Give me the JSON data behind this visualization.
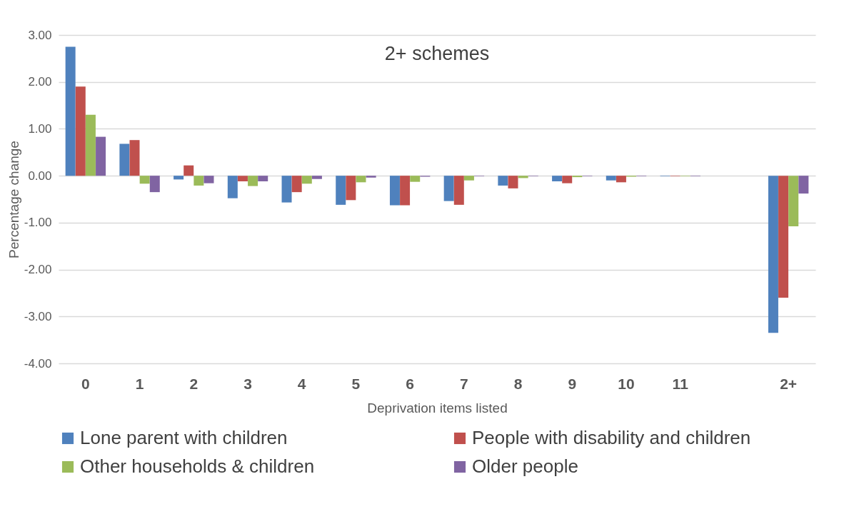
{
  "chart_data": {
    "type": "bar",
    "title": "2+ schemes",
    "xlabel": "Deprivation items listed",
    "ylabel": "Percentage change",
    "categories": [
      "0",
      "1",
      "2",
      "3",
      "4",
      "5",
      "6",
      "7",
      "8",
      "9",
      "10",
      "11",
      null,
      "2+"
    ],
    "series": [
      {
        "name": "Lone parent with children",
        "color": "#4f81bd",
        "values": [
          2.75,
          0.68,
          -0.08,
          -0.48,
          -0.57,
          -0.62,
          -0.63,
          -0.54,
          -0.21,
          -0.12,
          -0.1,
          -0.01,
          null,
          -3.35
        ]
      },
      {
        "name": "People with disability and children",
        "color": "#c0504d",
        "values": [
          1.9,
          0.76,
          0.22,
          -0.12,
          -0.35,
          -0.52,
          -0.63,
          -0.62,
          -0.27,
          -0.16,
          -0.14,
          -0.01,
          null,
          -2.6
        ]
      },
      {
        "name": "Other households & children",
        "color": "#9bbb59",
        "values": [
          1.3,
          -0.17,
          -0.21,
          -0.22,
          -0.17,
          -0.14,
          -0.13,
          -0.1,
          -0.05,
          -0.03,
          -0.02,
          -0.01,
          null,
          -1.08
        ]
      },
      {
        "name": "Older people",
        "color": "#8064a2",
        "values": [
          0.83,
          -0.35,
          -0.16,
          -0.12,
          -0.07,
          -0.04,
          -0.02,
          -0.01,
          -0.01,
          -0.01,
          -0.01,
          -0.01,
          null,
          -0.38
        ]
      }
    ],
    "ylim": [
      -4,
      3
    ],
    "yticks": [
      {
        "value": -4,
        "label": "-4.00"
      },
      {
        "value": -3,
        "label": "-3.00"
      },
      {
        "value": -2,
        "label": "-2.00"
      },
      {
        "value": -1,
        "label": "-1.00"
      },
      {
        "value": 0,
        "label": "0.00"
      },
      {
        "value": 1,
        "label": "1.00"
      },
      {
        "value": 2,
        "label": "2.00"
      },
      {
        "value": 3,
        "label": "3.00"
      }
    ],
    "grid": "y",
    "legend": "bottom"
  }
}
